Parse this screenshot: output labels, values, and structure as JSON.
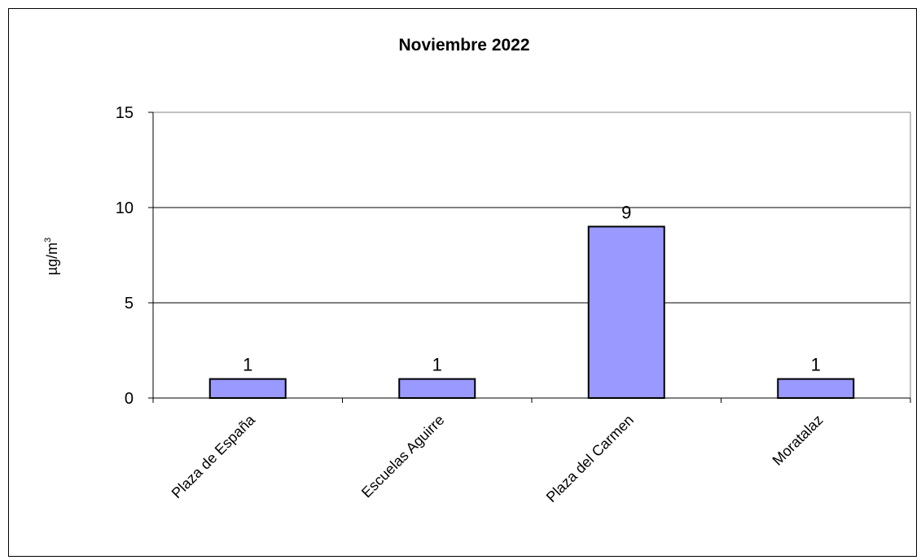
{
  "chart_data": {
    "type": "bar",
    "title": "Noviembre 2022",
    "ylabel": "µg/m",
    "ylabel_superscript": "3",
    "xlabel": "",
    "categories": [
      "Plaza de España",
      "Escuelas Aguirre",
      "Plaza del Carmen",
      "Moratalaz"
    ],
    "values": [
      1,
      1,
      9,
      1
    ],
    "data_labels": [
      "1",
      "1",
      "9",
      "1"
    ],
    "ylim": [
      0,
      15
    ],
    "yticks": [
      0,
      5,
      10,
      15
    ],
    "ytick_labels": [
      "0",
      "5",
      "10",
      "15"
    ],
    "grid": true,
    "legend": "none",
    "bar_color": "#9999ff",
    "bar_edge_color": "#000000"
  }
}
